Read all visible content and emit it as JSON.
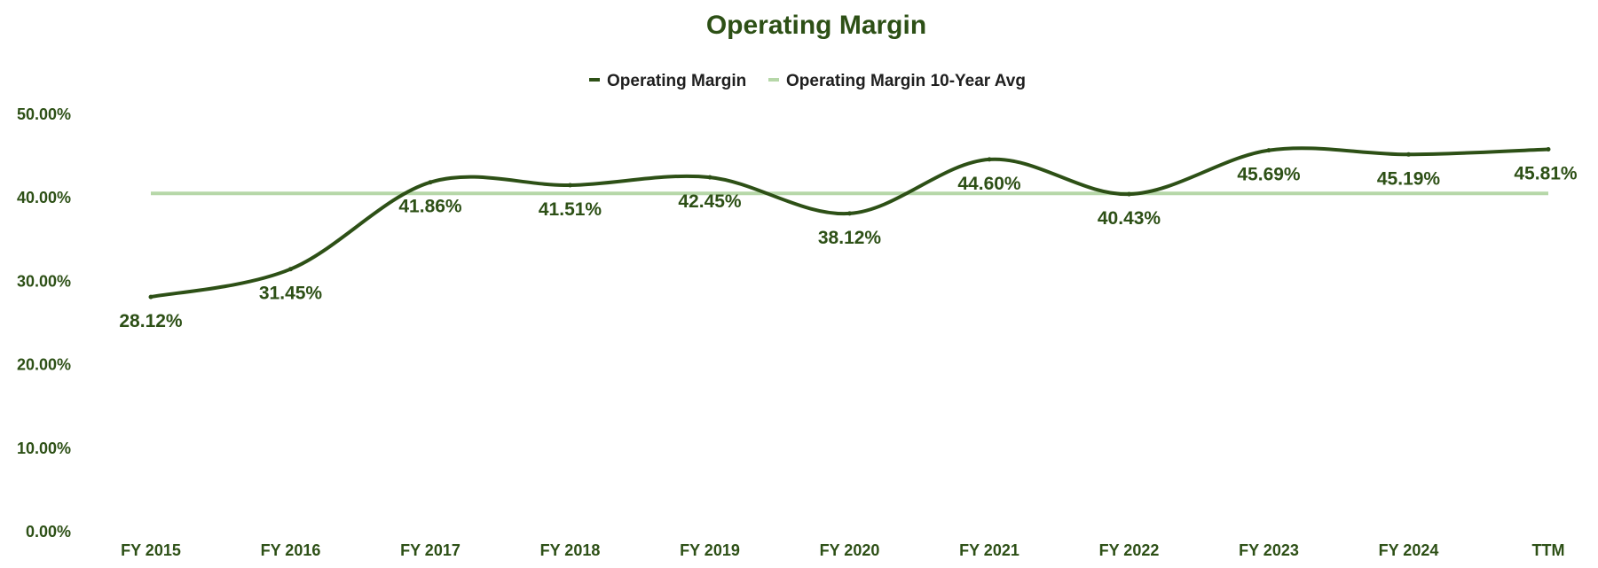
{
  "chart_data": {
    "type": "line",
    "title": "Operating Margin",
    "categories": [
      "FY 2015",
      "FY 2016",
      "FY 2017",
      "FY 2018",
      "FY 2019",
      "FY 2020",
      "FY 2021",
      "FY 2022",
      "FY 2023",
      "FY 2024",
      "TTM"
    ],
    "series": [
      {
        "name": "Operating Margin",
        "values": [
          28.12,
          31.45,
          41.86,
          41.51,
          42.45,
          38.12,
          44.6,
          40.43,
          45.69,
          45.19,
          45.81
        ],
        "labels": [
          "28.12%",
          "31.45%",
          "41.86%",
          "41.51%",
          "42.45%",
          "38.12%",
          "44.60%",
          "40.43%",
          "45.69%",
          "45.19%",
          "45.81%"
        ],
        "color": "#2d5016"
      },
      {
        "name": "Operating Margin 10-Year Avg",
        "values": [
          40.53,
          40.53,
          40.53,
          40.53,
          40.53,
          40.53,
          40.53,
          40.53,
          40.53,
          40.53,
          40.53
        ],
        "color": "#b6d7a8"
      }
    ],
    "yticks": [
      "0.00%",
      "10.00%",
      "20.00%",
      "30.00%",
      "40.00%",
      "50.00%"
    ],
    "ylim": [
      0,
      50
    ],
    "xlabel": "",
    "ylabel": "",
    "legend": "top-center",
    "grid": false
  }
}
